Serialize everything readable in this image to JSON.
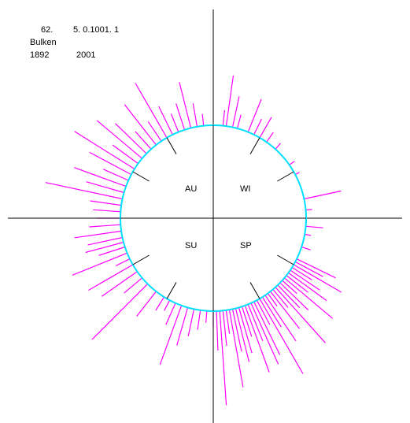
{
  "header": {
    "line1_a": "62.",
    "line1_b": "5. 0.1001. 1",
    "station": "Bulken",
    "year_start": "1892",
    "year_end": "2001"
  },
  "colors": {
    "bars": "#ff00ff",
    "circle": "#00e0ff",
    "axes": "#000000",
    "ticks": "#000000"
  },
  "chart_data": {
    "type": "polar-bar",
    "title": "",
    "season_labels": [
      "AU",
      "WI",
      "SU",
      "SP"
    ],
    "angle_unit": "degrees clockwise from top (north)",
    "bars": [
      [
        6,
        20
      ],
      [
        8,
        65
      ],
      [
        12,
        40
      ],
      [
        15,
        18
      ],
      [
        22,
        45
      ],
      [
        26,
        22
      ],
      [
        30,
        30
      ],
      [
        35,
        15
      ],
      [
        42,
        10
      ],
      [
        55,
        8
      ],
      [
        62,
        6
      ],
      [
        78,
        48
      ],
      [
        85,
        8
      ],
      [
        95,
        22
      ],
      [
        100,
        8
      ],
      [
        108,
        12
      ],
      [
        116,
        55
      ],
      [
        118,
        40
      ],
      [
        120,
        70
      ],
      [
        122,
        30
      ],
      [
        124,
        45
      ],
      [
        126,
        60
      ],
      [
        128,
        35
      ],
      [
        130,
        80
      ],
      [
        132,
        25
      ],
      [
        134,
        50
      ],
      [
        136,
        40
      ],
      [
        138,
        95
      ],
      [
        140,
        30
      ],
      [
        142,
        60
      ],
      [
        144,
        20
      ],
      [
        146,
        70
      ],
      [
        148,
        45
      ],
      [
        150,
        110
      ],
      [
        152,
        35
      ],
      [
        154,
        75
      ],
      [
        156,
        85
      ],
      [
        158,
        50
      ],
      [
        160,
        90
      ],
      [
        162,
        40
      ],
      [
        164,
        60
      ],
      [
        166,
        70
      ],
      [
        168,
        55
      ],
      [
        170,
        100
      ],
      [
        172,
        30
      ],
      [
        174,
        45
      ],
      [
        176,
        120
      ],
      [
        178,
        50
      ],
      [
        180,
        20
      ],
      [
        184,
        15
      ],
      [
        188,
        25
      ],
      [
        192,
        35
      ],
      [
        196,
        50
      ],
      [
        200,
        80
      ],
      [
        204,
        30
      ],
      [
        208,
        15
      ],
      [
        212,
        20
      ],
      [
        218,
        40
      ],
      [
        225,
        100
      ],
      [
        230,
        30
      ],
      [
        235,
        55
      ],
      [
        240,
        65
      ],
      [
        244,
        20
      ],
      [
        248,
        75
      ],
      [
        252,
        35
      ],
      [
        255,
        50
      ],
      [
        258,
        45
      ],
      [
        262,
        60
      ],
      [
        266,
        40
      ],
      [
        270,
        30
      ],
      [
        274,
        35
      ],
      [
        278,
        40
      ],
      [
        282,
        100
      ],
      [
        286,
        50
      ],
      [
        290,
        70
      ],
      [
        294,
        35
      ],
      [
        298,
        60
      ],
      [
        302,
        90
      ],
      [
        306,
        40
      ],
      [
        310,
        75
      ],
      [
        314,
        55
      ],
      [
        318,
        30
      ],
      [
        322,
        65
      ],
      [
        326,
        30
      ],
      [
        330,
        80
      ],
      [
        334,
        40
      ],
      [
        338,
        25
      ],
      [
        342,
        35
      ],
      [
        346,
        60
      ],
      [
        350,
        30
      ],
      [
        354,
        15
      ]
    ]
  }
}
